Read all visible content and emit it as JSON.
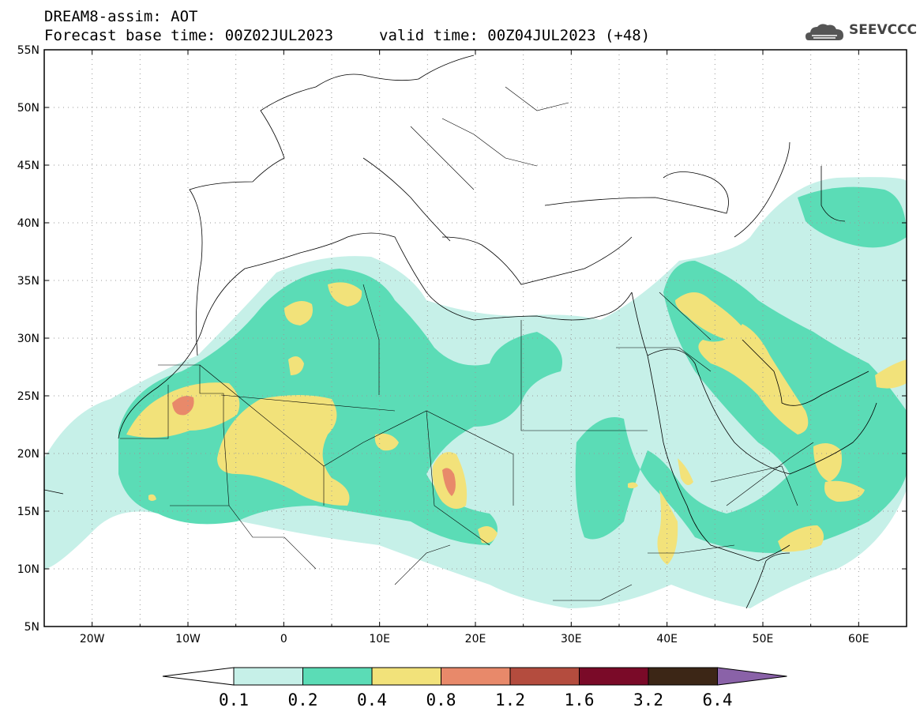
{
  "header": {
    "line1": "DREAM8-assim: AOT",
    "line2": "Forecast base time: 00Z02JUL2023",
    "valid": "valid time: 00Z04JUL2023 (+48)"
  },
  "logo": {
    "text": "SEEVCCC",
    "icon": "cloud-icon"
  },
  "map": {
    "lat_labels": [
      "55N",
      "50N",
      "45N",
      "40N",
      "35N",
      "30N",
      "25N",
      "20N",
      "15N",
      "10N",
      "5N"
    ],
    "lon_labels": [
      "20W",
      "10W",
      "0",
      "10E",
      "20E",
      "30E",
      "40E",
      "50E",
      "60E"
    ],
    "lat_values": [
      55,
      50,
      45,
      40,
      35,
      30,
      25,
      20,
      15,
      10,
      5
    ],
    "lon_values": [
      -20,
      -10,
      0,
      10,
      20,
      30,
      40,
      50,
      60
    ],
    "lon_range": [
      -25,
      65
    ],
    "lat_range": [
      5,
      55
    ],
    "grid": true
  },
  "colorbar": {
    "labels": [
      "0.1",
      "0.2",
      "0.4",
      "0.8",
      "1.2",
      "1.6",
      "3.2",
      "6.4"
    ],
    "colors": [
      "#c6f0e8",
      "#5bdcb6",
      "#f2e27a",
      "#e8896a",
      "#b44c3e",
      "#7a0a28",
      "#3c2616",
      "#8a62a8"
    ]
  }
}
